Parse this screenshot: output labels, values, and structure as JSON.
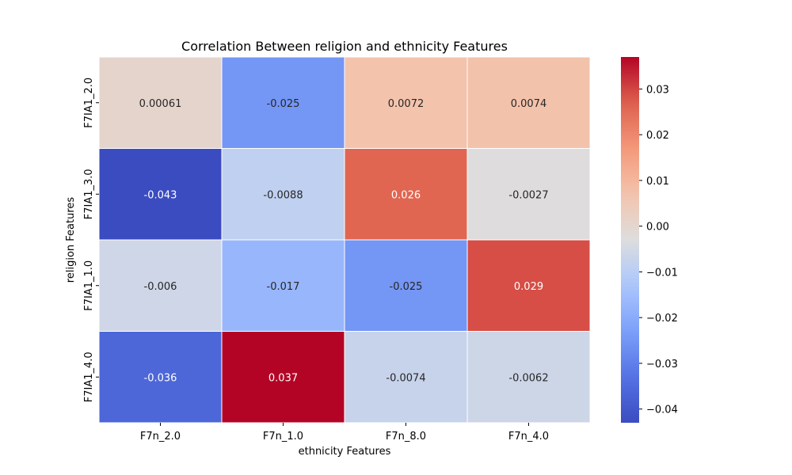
{
  "chart_data": {
    "type": "heatmap",
    "title": "Correlation Between religion and ethnicity Features",
    "xlabel": "ethnicity Features",
    "ylabel": "religion Features",
    "columns": [
      "F7n_2.0",
      "F7n_1.0",
      "F7n_8.0",
      "F7n_4.0"
    ],
    "rows": [
      "F7IA1_2.0",
      "F7IA1_3.0",
      "F7IA1_1.0",
      "F7IA1_4.0"
    ],
    "values": [
      [
        0.00061,
        -0.025,
        0.0072,
        0.0074
      ],
      [
        -0.043,
        -0.0088,
        0.026,
        -0.0027
      ],
      [
        -0.006,
        -0.017,
        -0.025,
        0.029
      ],
      [
        -0.036,
        0.037,
        -0.0074,
        -0.0062
      ]
    ],
    "value_labels": [
      [
        "0.00061",
        "-0.025",
        "0.0072",
        "0.0074"
      ],
      [
        "-0.043",
        "-0.0088",
        "0.026",
        "-0.0027"
      ],
      [
        "-0.006",
        "-0.017",
        "-0.025",
        "0.029"
      ],
      [
        "-0.036",
        "0.037",
        "-0.0074",
        "-0.0062"
      ]
    ],
    "colormap": "coolwarm",
    "colorbar": {
      "range": [
        -0.043,
        0.037
      ],
      "ticks": [
        0.03,
        0.02,
        0.01,
        0.0,
        -0.01,
        -0.02,
        -0.03,
        -0.04
      ],
      "tick_labels": [
        "0.03",
        "0.02",
        "0.01",
        "0.00",
        "−0.01",
        "−0.02",
        "−0.03",
        "−0.04"
      ]
    }
  }
}
